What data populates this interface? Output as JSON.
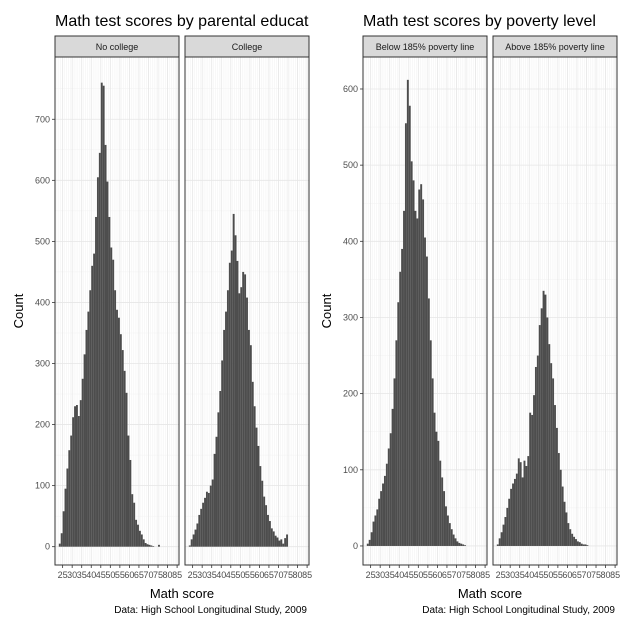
{
  "colors": {
    "bar": "#4d4d4d",
    "strip_fill": "#d9d9d9",
    "panel_border": "#333333",
    "grid_major": "#e6e6e6",
    "grid_minor": "#f2f2f2",
    "background": "#ffffff"
  },
  "chart_data": [
    {
      "type": "bar",
      "subtype": "histogram",
      "title": "Math test scores by parental educat",
      "xlabel": "Math score",
      "ylabel": "Count",
      "caption": "Data: High School Longitudinal Study, 2009",
      "xlim": [
        21,
        86
      ],
      "ylim": [
        -30,
        802
      ],
      "x_ticks": [
        25,
        30,
        35,
        40,
        45,
        50,
        55,
        60,
        65,
        70,
        75,
        80,
        85
      ],
      "x_tick_labels": [
        "25",
        "30",
        "35",
        "40",
        "45",
        "50",
        "55",
        "60",
        "65",
        "70",
        "75",
        "80",
        "85"
      ],
      "y_ticks": [
        0,
        100,
        200,
        300,
        400,
        500,
        600,
        700
      ],
      "y_tick_labels": [
        "0",
        "100",
        "200",
        "300",
        "400",
        "500",
        "600",
        "700"
      ],
      "grid": true,
      "bin_start": 23,
      "bin_width": 1,
      "panels": [
        {
          "label": "No college",
          "values": [
            5,
            22,
            58,
            95,
            128,
            158,
            182,
            212,
            230,
            232,
            214,
            240,
            275,
            315,
            355,
            385,
            420,
            460,
            480,
            540,
            605,
            645,
            760,
            755,
            658,
            598,
            540,
            490,
            470,
            420,
            388,
            375,
            348,
            322,
            288,
            252,
            182,
            142,
            86,
            72,
            44,
            36,
            26,
            20,
            12,
            6,
            4,
            3,
            2,
            1,
            0,
            0,
            3,
            0
          ]
        },
        {
          "label": "College",
          "values": [
            2,
            12,
            20,
            28,
            38,
            52,
            62,
            72,
            80,
            90,
            88,
            100,
            110,
            152,
            180,
            220,
            255,
            305,
            355,
            385,
            420,
            465,
            485,
            545,
            510,
            468,
            415,
            425,
            450,
            446,
            408,
            355,
            330,
            270,
            230,
            195,
            165,
            132,
            108,
            82,
            68,
            52,
            42,
            30,
            25,
            18,
            15,
            10,
            12,
            5,
            14,
            20
          ]
        }
      ]
    },
    {
      "type": "bar",
      "subtype": "histogram",
      "title": "Math test scores by poverty level",
      "xlabel": "Math score",
      "ylabel": "Count",
      "caption": "Data: High School Longitudinal Study, 2009",
      "xlim": [
        21,
        86
      ],
      "ylim": [
        -25,
        642
      ],
      "x_ticks": [
        25,
        30,
        35,
        40,
        45,
        50,
        55,
        60,
        65,
        70,
        75,
        80,
        85
      ],
      "x_tick_labels": [
        "25",
        "30",
        "35",
        "40",
        "45",
        "50",
        "55",
        "60",
        "65",
        "70",
        "75",
        "80",
        "85"
      ],
      "y_ticks": [
        0,
        100,
        200,
        300,
        400,
        500,
        600
      ],
      "y_tick_labels": [
        "0",
        "100",
        "200",
        "300",
        "400",
        "500",
        "600"
      ],
      "grid": true,
      "bin_start": 23,
      "bin_width": 1,
      "panels": [
        {
          "label": "Below 185% poverty line",
          "values": [
            3,
            8,
            18,
            32,
            40,
            48,
            62,
            72,
            82,
            92,
            108,
            128,
            148,
            180,
            220,
            270,
            320,
            360,
            390,
            440,
            555,
            612,
            578,
            505,
            480,
            440,
            430,
            468,
            475,
            455,
            405,
            380,
            325,
            270,
            220,
            175,
            150,
            138,
            112,
            90,
            72,
            52,
            40,
            30,
            22,
            15,
            10,
            6,
            4,
            3,
            2,
            1
          ]
        },
        {
          "label": "Above 185% poverty line",
          "values": [
            2,
            10,
            18,
            28,
            38,
            50,
            62,
            75,
            82,
            88,
            95,
            115,
            110,
            90,
            112,
            105,
            118,
            175,
            172,
            198,
            235,
            250,
            290,
            312,
            335,
            330,
            300,
            265,
            240,
            220,
            185,
            155,
            122,
            100,
            78,
            58,
            44,
            30,
            22,
            16,
            12,
            9,
            6,
            5,
            3,
            2,
            2,
            1
          ]
        }
      ]
    }
  ]
}
